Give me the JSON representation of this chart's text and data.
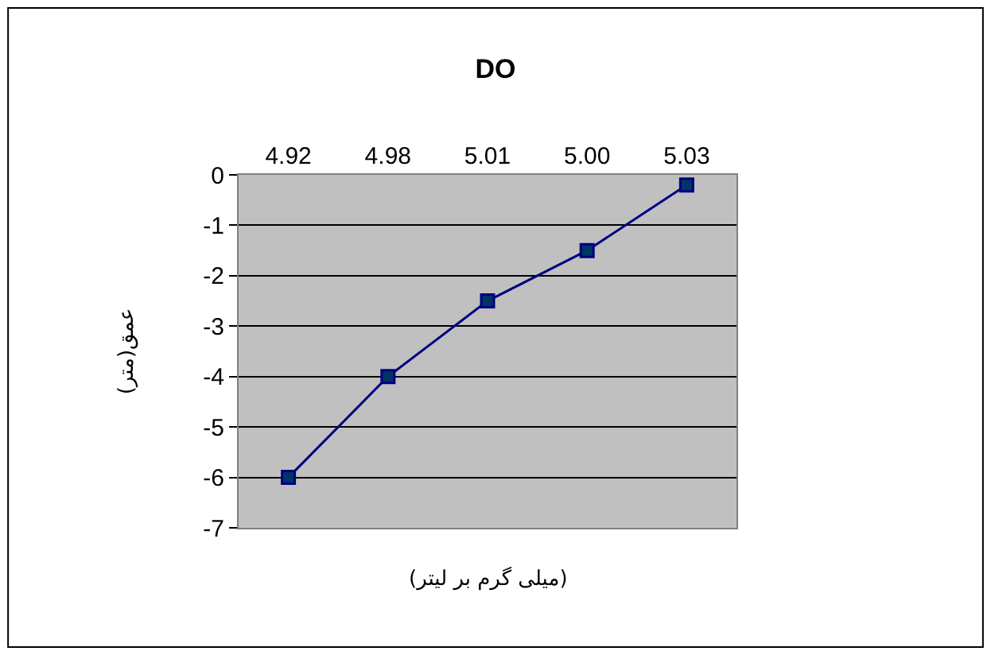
{
  "chart_data": {
    "type": "line",
    "title": "DO",
    "xlabel": "(میلی گرم بر لیتر)",
    "ylabel": "عمق(متر)",
    "categories": [
      "4.92",
      "4.98",
      "5.01",
      "5.00",
      "5.03"
    ],
    "series": [
      {
        "color": "#000080",
        "values": [
          -6,
          -4,
          -2.5,
          -1.5,
          -0.2
        ]
      }
    ],
    "ylim": [
      -7,
      0
    ],
    "yticks": [
      -7,
      -6,
      -5,
      -4,
      -3,
      -2,
      -1,
      0
    ],
    "grid": "y",
    "marker": "square",
    "line_style": "solid"
  }
}
